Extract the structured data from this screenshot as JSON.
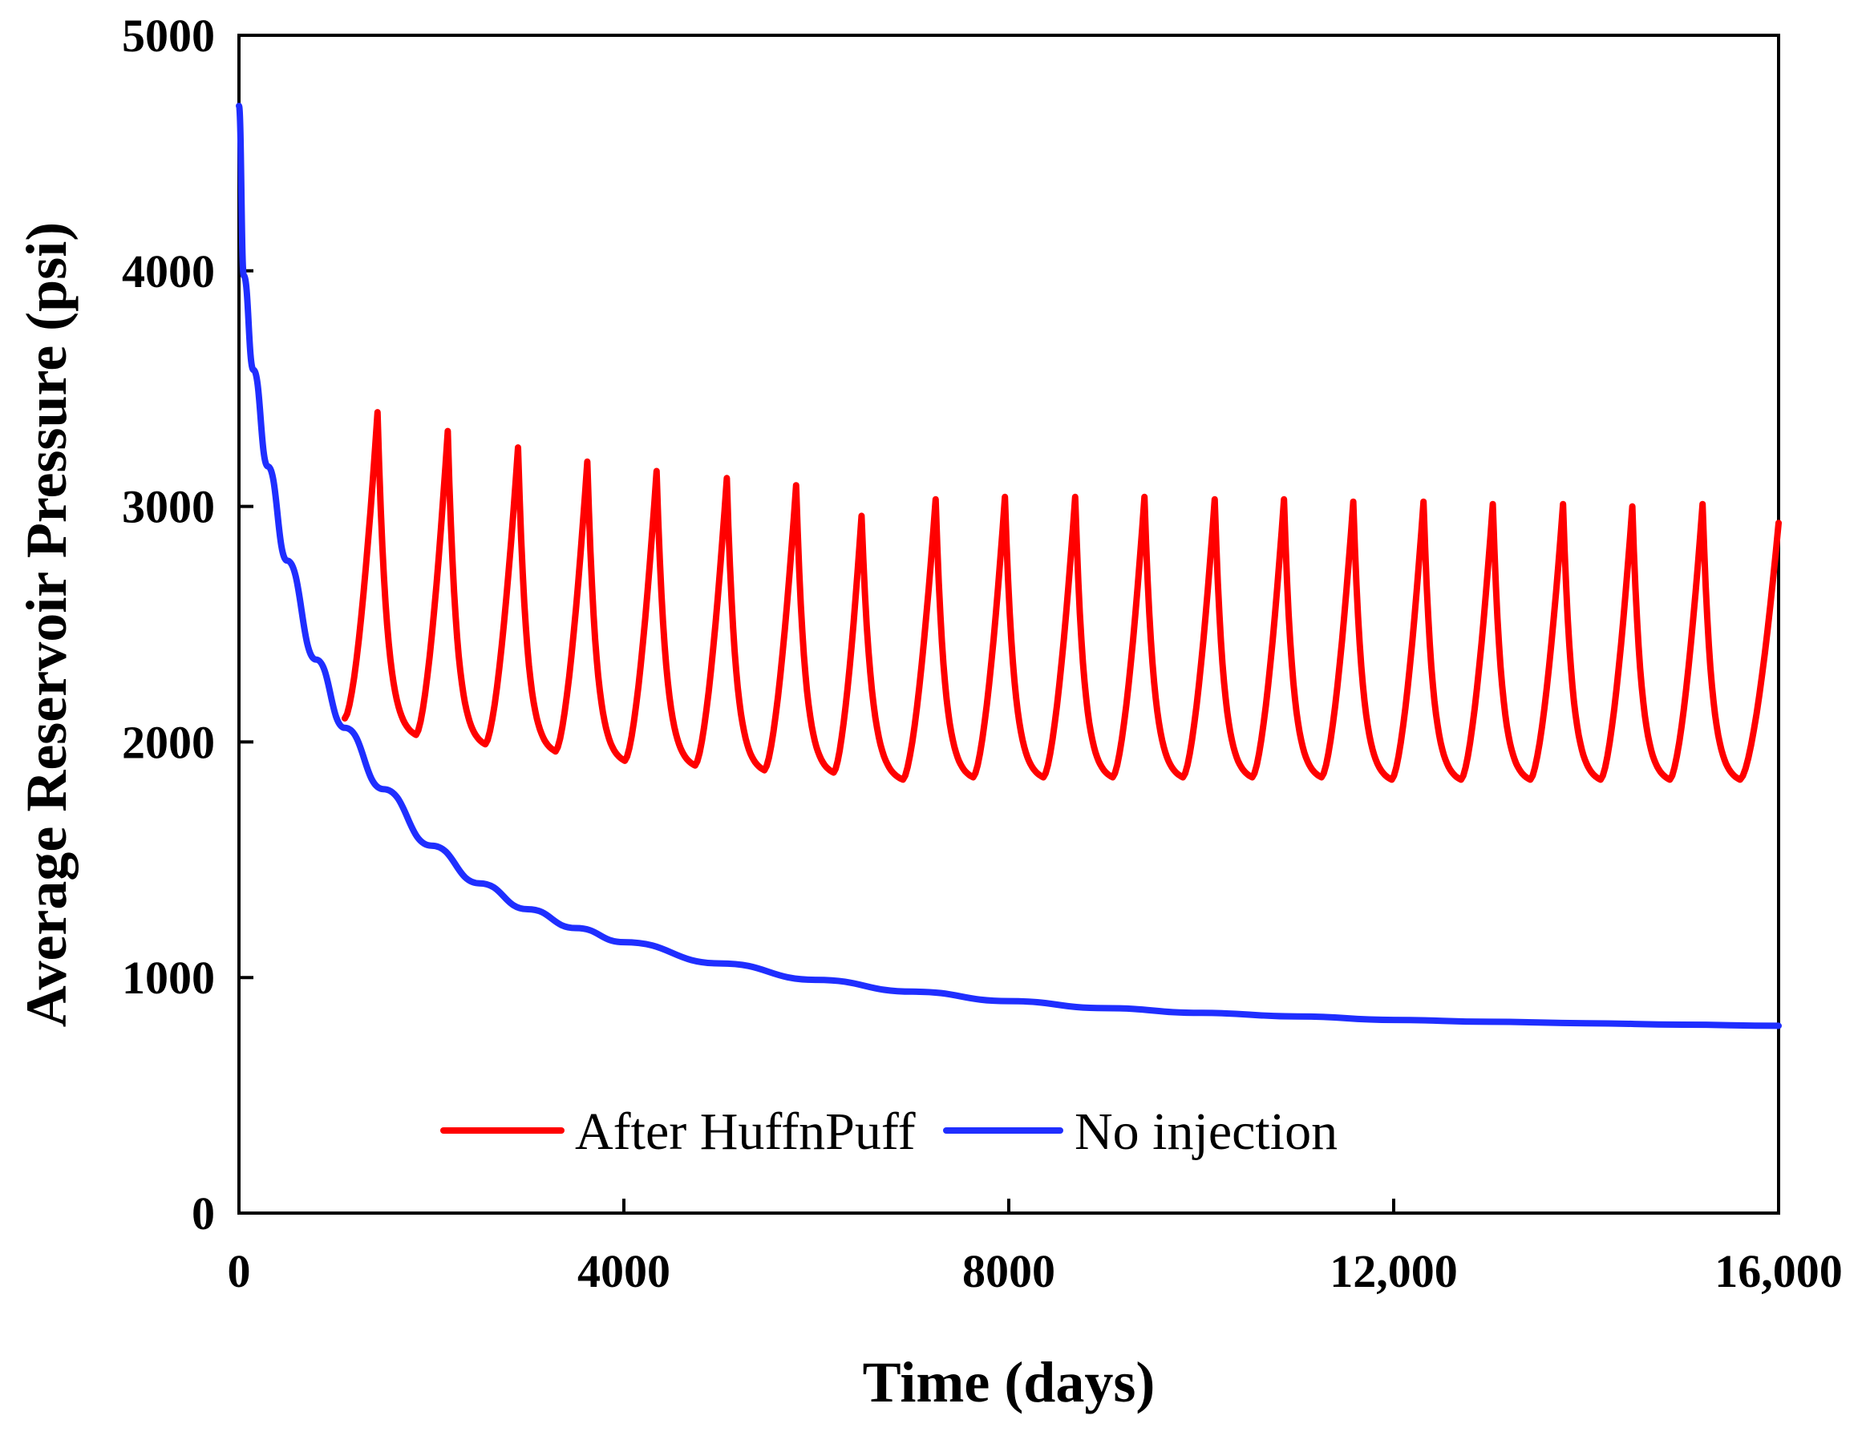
{
  "chart_data": {
    "type": "line",
    "title": "",
    "xlabel": "Time (days)",
    "ylabel": "Average Reservoir  Pressure (psi)",
    "xlim": [
      0,
      16000
    ],
    "ylim": [
      0,
      5000
    ],
    "grid": false,
    "legend_position": "bottom-center",
    "x_ticks": [
      {
        "value": 0,
        "label": "0"
      },
      {
        "value": 4000,
        "label": "4000"
      },
      {
        "value": 8000,
        "label": "8000"
      },
      {
        "value": 12000,
        "label": "12,000"
      },
      {
        "value": 16000,
        "label": "16,000"
      }
    ],
    "y_ticks": [
      {
        "value": 0,
        "label": "0"
      },
      {
        "value": 1000,
        "label": "1000"
      },
      {
        "value": 2000,
        "label": "2000"
      },
      {
        "value": 3000,
        "label": "3000"
      },
      {
        "value": 4000,
        "label": "4000"
      },
      {
        "value": 5000,
        "label": "5000"
      }
    ],
    "series": [
      {
        "name": "After HuffnPuff",
        "color": "#ff0000",
        "start_x": 1100,
        "start_y": 2100,
        "cycles": [
          {
            "peak_x": 1440,
            "peak_y": 3400,
            "trough_x": 1840,
            "trough_y": 2030
          },
          {
            "peak_x": 2170,
            "peak_y": 3320,
            "trough_x": 2560,
            "trough_y": 1990
          },
          {
            "peak_x": 2900,
            "peak_y": 3250,
            "trough_x": 3290,
            "trough_y": 1960
          },
          {
            "peak_x": 3620,
            "peak_y": 3190,
            "trough_x": 4010,
            "trough_y": 1920
          },
          {
            "peak_x": 4340,
            "peak_y": 3150,
            "trough_x": 4740,
            "trough_y": 1900
          },
          {
            "peak_x": 5070,
            "peak_y": 3120,
            "trough_x": 5460,
            "trough_y": 1880
          },
          {
            "peak_x": 5790,
            "peak_y": 3090,
            "trough_x": 6180,
            "trough_y": 1870
          },
          {
            "peak_x": 6470,
            "peak_y": 2960,
            "trough_x": 6900,
            "trough_y": 1840
          },
          {
            "peak_x": 7240,
            "peak_y": 3030,
            "trough_x": 7630,
            "trough_y": 1850
          },
          {
            "peak_x": 7960,
            "peak_y": 3040,
            "trough_x": 8360,
            "trough_y": 1850
          },
          {
            "peak_x": 8690,
            "peak_y": 3040,
            "trough_x": 9080,
            "trough_y": 1850
          },
          {
            "peak_x": 9410,
            "peak_y": 3040,
            "trough_x": 9810,
            "trough_y": 1850
          },
          {
            "peak_x": 10140,
            "peak_y": 3030,
            "trough_x": 10530,
            "trough_y": 1850
          },
          {
            "peak_x": 10860,
            "peak_y": 3030,
            "trough_x": 11250,
            "trough_y": 1850
          },
          {
            "peak_x": 11580,
            "peak_y": 3020,
            "trough_x": 11980,
            "trough_y": 1840
          },
          {
            "peak_x": 12310,
            "peak_y": 3020,
            "trough_x": 12700,
            "trough_y": 1840
          },
          {
            "peak_x": 13030,
            "peak_y": 3010,
            "trough_x": 13420,
            "trough_y": 1840
          },
          {
            "peak_x": 13760,
            "peak_y": 3010,
            "trough_x": 14150,
            "trough_y": 1840
          },
          {
            "peak_x": 14480,
            "peak_y": 3000,
            "trough_x": 14870,
            "trough_y": 1840
          },
          {
            "peak_x": 15210,
            "peak_y": 3010,
            "trough_x": 15600,
            "trough_y": 1840
          }
        ],
        "end_x": 16000,
        "end_y": 2930
      },
      {
        "name": "No injection",
        "color": "#1f2eff",
        "x": [
          0,
          50,
          150,
          300,
          500,
          800,
          1100,
          1500,
          2000,
          2500,
          3000,
          3500,
          4000,
          5000,
          6000,
          7000,
          8000,
          9000,
          10000,
          11000,
          12000,
          13000,
          14000,
          15000,
          16000
        ],
        "values": [
          4700,
          3980,
          3580,
          3170,
          2770,
          2350,
          2060,
          1800,
          1560,
          1400,
          1290,
          1210,
          1150,
          1060,
          990,
          940,
          900,
          870,
          850,
          835,
          820,
          812,
          806,
          800,
          795
        ]
      }
    ]
  }
}
